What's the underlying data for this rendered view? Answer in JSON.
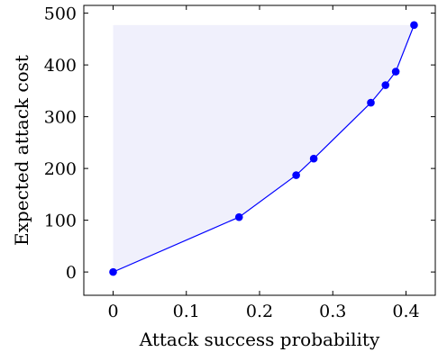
{
  "chart_data": {
    "type": "line",
    "xlabel": "Attack success probability",
    "ylabel": "Expected attack cost",
    "xlim": [
      -0.04,
      0.44
    ],
    "ylim": [
      -45,
      515
    ],
    "x_ticks": [
      0,
      0.1,
      0.2,
      0.3,
      0.4
    ],
    "x_tick_labels": [
      "0",
      "0.1",
      "0.2",
      "0.3",
      "0.4"
    ],
    "y_ticks": [
      0,
      100,
      200,
      300,
      400,
      500
    ],
    "y_tick_labels": [
      "0",
      "100",
      "200",
      "300",
      "400",
      "500"
    ],
    "grid": false,
    "legend": "none",
    "series": [
      {
        "x": [
          0,
          0.172,
          0.25,
          0.274,
          0.352,
          0.372,
          0.386,
          0.411
        ],
        "y": [
          0,
          106,
          187,
          219,
          327,
          361,
          387,
          477
        ],
        "color": "#0000ff"
      }
    ],
    "fill_region": {
      "description_color": "#f0f0fc",
      "top_y": 477
    }
  }
}
